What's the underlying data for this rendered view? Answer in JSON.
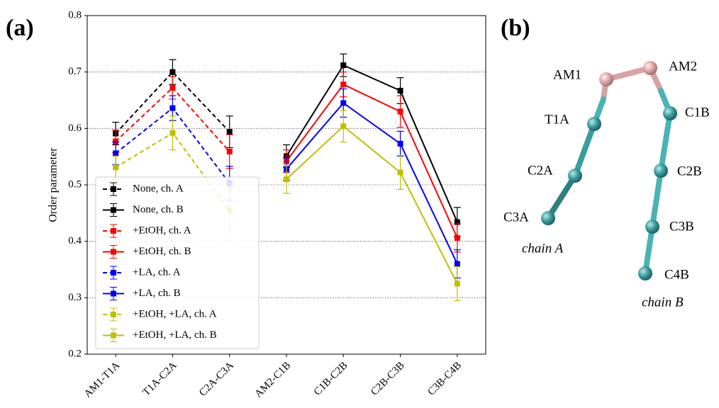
{
  "chart_data": {
    "type": "line",
    "panel_label": "(a)",
    "ylabel": "Order parameter",
    "categories": [
      "AM1-T1A",
      "T1A-C2A",
      "C2A-C3A",
      "AM2-C1B",
      "C1B-C2B",
      "C2B-C3B",
      "C3B-C4B"
    ],
    "ylim": [
      0.2,
      0.8
    ],
    "yticks": [
      0.2,
      0.3,
      0.4,
      0.5,
      0.6,
      0.7,
      0.8
    ],
    "grid": true,
    "legend": "lower left",
    "series": [
      {
        "name": "None, ch. A",
        "color": "#000000",
        "linestyle": "dashed",
        "values": [
          0.591,
          0.7,
          0.594,
          null,
          null,
          null,
          null
        ],
        "errors": [
          0.02,
          0.022,
          0.028,
          null,
          null,
          null,
          null
        ]
      },
      {
        "name": "None, ch. B",
        "color": "#000000",
        "linestyle": "solid",
        "values": [
          null,
          null,
          null,
          0.551,
          0.712,
          0.667,
          0.434
        ],
        "errors": [
          null,
          null,
          null,
          0.02,
          0.02,
          0.023,
          0.026
        ]
      },
      {
        "name": "+EtOH, ch. A",
        "color": "#ff0000",
        "linestyle": "dashed",
        "values": [
          0.577,
          0.672,
          0.559,
          null,
          null,
          null,
          null
        ],
        "errors": [
          0.02,
          0.02,
          0.03,
          null,
          null,
          null,
          null
        ]
      },
      {
        "name": "+EtOH, ch. B",
        "color": "#ff0000",
        "linestyle": "solid",
        "values": [
          null,
          null,
          null,
          0.542,
          0.678,
          0.63,
          0.406
        ],
        "errors": [
          null,
          null,
          null,
          0.02,
          0.022,
          0.028,
          0.025
        ]
      },
      {
        "name": "+LA, ch. A",
        "color": "#0000ff",
        "linestyle": "dashed",
        "values": [
          0.556,
          0.636,
          0.503,
          null,
          null,
          null,
          null
        ],
        "errors": [
          0.02,
          0.022,
          0.03,
          null,
          null,
          null,
          null
        ]
      },
      {
        "name": "+LA, ch. B",
        "color": "#0000ff",
        "linestyle": "solid",
        "values": [
          null,
          null,
          null,
          0.528,
          0.645,
          0.573,
          0.36
        ],
        "errors": [
          null,
          null,
          null,
          0.02,
          0.025,
          0.022,
          0.025
        ]
      },
      {
        "name": "+EtOH, +LA, ch. A",
        "color": "#bfbf00",
        "linestyle": "dashed",
        "values": [
          0.531,
          0.592,
          0.455,
          null,
          null,
          null,
          null
        ],
        "errors": [
          0.02,
          0.03,
          0.038,
          null,
          null,
          null,
          null
        ]
      },
      {
        "name": "+EtOH, +LA, ch. B",
        "color": "#bfbf00",
        "linestyle": "solid",
        "values": [
          null,
          null,
          null,
          0.51,
          0.604,
          0.522,
          0.325
        ],
        "errors": [
          null,
          null,
          null,
          0.025,
          0.028,
          0.03,
          0.03
        ]
      }
    ]
  },
  "panel_b": {
    "label": "(b)",
    "nodes": [
      "AM1",
      "AM2",
      "T1A",
      "C2A",
      "C3A",
      "C1B",
      "C2B",
      "C3B",
      "C4B"
    ],
    "chains": [
      "chain A",
      "chain B"
    ]
  }
}
